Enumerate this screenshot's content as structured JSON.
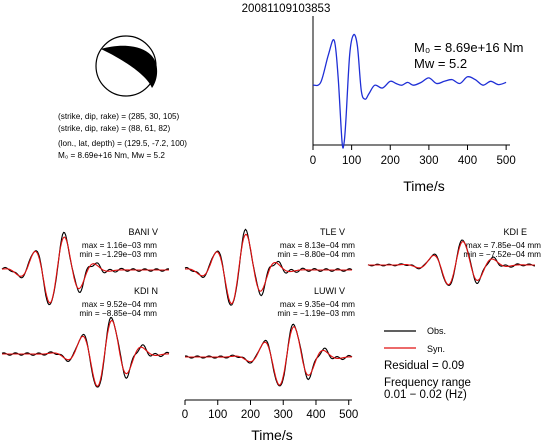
{
  "event_id": "20081109103853",
  "mechanism": {
    "line1": "(strike, dip, rake) = (285, 30, 105)",
    "line2": "(strike, dip, rake) = (88, 61, 82)",
    "line3": "(lon., lat, depth) = (129.5, -7.2, 100)",
    "line4": "M₀ = 8.69e+16 Nm, Mw = 5.2"
  },
  "stf": {
    "m0_label": "M₀ = 8.69e+16 Nm",
    "mw_label": "Mw = 5.2",
    "xlabel": "Time/s",
    "xlim": [
      0,
      510
    ],
    "ticks": [
      "0",
      "100",
      "200",
      "300",
      "400",
      "500"
    ],
    "color": "#1f2fd6"
  },
  "bottom_axis": {
    "xlabel": "Time/s",
    "ticks": [
      "0",
      "100",
      "200",
      "300",
      "400",
      "500"
    ]
  },
  "legend": {
    "obs": "Obs.",
    "syn": "Syn.",
    "residual": "Residual = 0.09",
    "freq1": "Frequency range",
    "freq2": "0.01 − 0.02 (Hz)",
    "obs_color": "#000000",
    "syn_color": "#e01010"
  },
  "stations": [
    {
      "name": "BANI V",
      "max": "max = 1.16e−03 mm",
      "min": "min = −1.29e−03 mm"
    },
    {
      "name": "TLE V",
      "max": "max = 8.13e−04 mm",
      "min": "min = −8.80e−04 mm"
    },
    {
      "name": "KDI E",
      "max": "max = 7.85e−04 mm",
      "min": "min = −7.52e−04 mm"
    },
    {
      "name": "KDI N",
      "max": "max = 9.52e−04 mm",
      "min": "min = −8.85e−04 mm"
    },
    {
      "name": "LUWI V",
      "max": "max = 9.35e−04 mm",
      "min": "min = −1.19e−03 mm"
    }
  ],
  "chart_data": {
    "type": "line",
    "title": "20081109103853",
    "xlabel": "Time/s",
    "xlim": [
      0,
      510
    ],
    "source_time_function": {
      "t": [
        0,
        20,
        40,
        55,
        65,
        75,
        80,
        85,
        95,
        105,
        115,
        125,
        135,
        145,
        160,
        180,
        200,
        215,
        230,
        245,
        260,
        280,
        300,
        320,
        340,
        360,
        380,
        400,
        420,
        440,
        460,
        480,
        500
      ],
      "values": [
        0.05,
        0.1,
        0.6,
        0.85,
        0.2,
        -0.95,
        -1.0,
        -0.6,
        0.6,
        0.95,
        0.75,
        -0.05,
        -0.2,
        -0.1,
        0.05,
        0.0,
        0.12,
        0.08,
        0.05,
        0.1,
        0.05,
        0.1,
        0.18,
        0.08,
        0.12,
        0.15,
        0.08,
        0.2,
        0.15,
        0.05,
        0.12,
        0.06,
        0.1
      ]
    }
  }
}
